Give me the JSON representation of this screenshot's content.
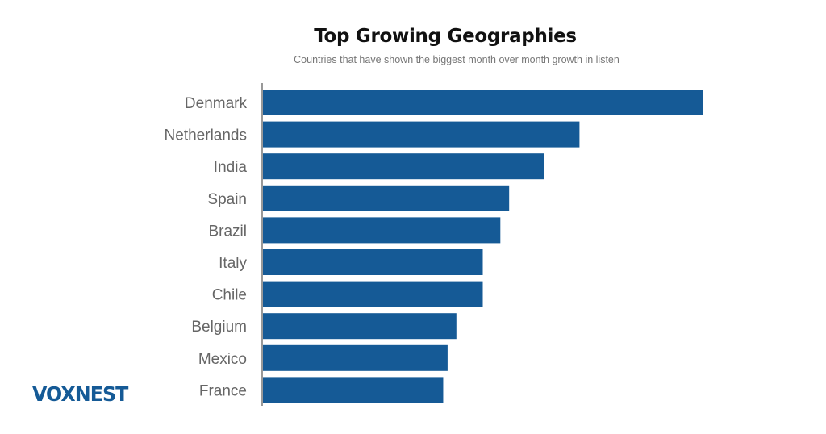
{
  "logo": "VOXNEST",
  "chart_data": {
    "type": "bar",
    "orientation": "horizontal",
    "title": "Top Growing Geographies",
    "subtitle": "Countries that have shown the biggest month over month growth in listen",
    "xlabel": "",
    "ylabel": "",
    "categories": [
      "Denmark",
      "Netherlands",
      "India",
      "Spain",
      "Brazil",
      "Italy",
      "Chile",
      "Belgium",
      "Mexico",
      "France"
    ],
    "values": [
      100,
      72,
      64,
      56,
      54,
      50,
      50,
      44,
      42,
      41
    ],
    "value_note": "relative values, Denmark = 100 (no axis scale shown)",
    "xlim": [
      0,
      100
    ],
    "grid": false,
    "bar_color": "#155a96"
  }
}
